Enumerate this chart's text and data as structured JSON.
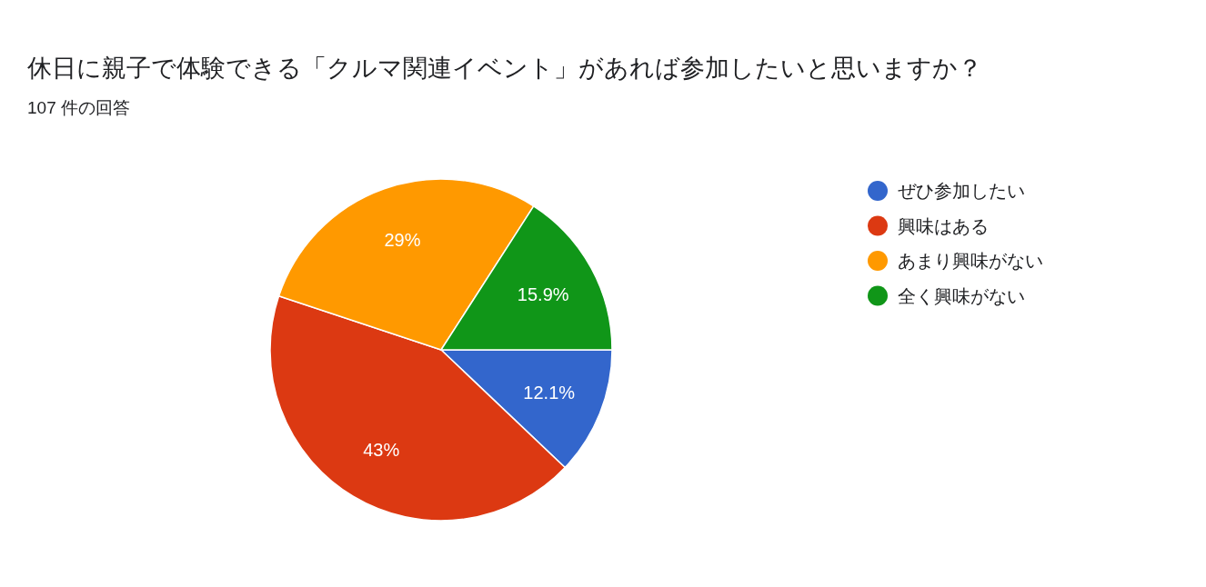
{
  "chart_data": {
    "type": "pie",
    "title": "休日に親子で体験できる「クルマ関連イベント」があれば参加したいと思いますか？",
    "subtitle": "107 件の回答",
    "categories": [
      "ぜひ参加したい",
      "興味はある",
      "あまり興味がない",
      "全く興味がない"
    ],
    "values": [
      12.1,
      43,
      29,
      15.9
    ],
    "value_labels": [
      "12.1%",
      "43%",
      "29%",
      "15.9%"
    ],
    "colors": [
      "#3366cc",
      "#dc3912",
      "#ff9900",
      "#109618"
    ],
    "legend": "right"
  }
}
